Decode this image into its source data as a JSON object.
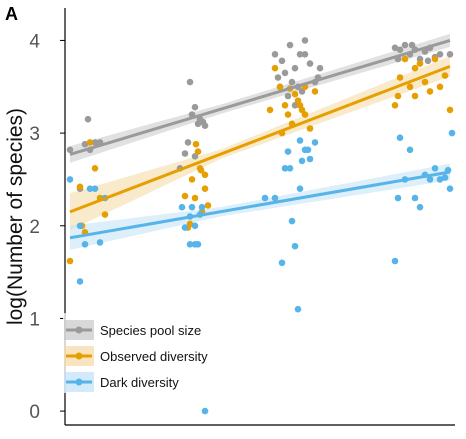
{
  "panel_label": "A",
  "chart_data": {
    "type": "scatter",
    "title": "",
    "xlabel": "",
    "ylabel": "log(Number of species)",
    "ylim": [
      -0.15,
      4.35
    ],
    "xlim": [
      -0.45,
      3.45
    ],
    "yticks": [
      "0",
      "1",
      "2",
      "3",
      "4"
    ],
    "grid": false,
    "legend_position": "bottom-left",
    "series": [
      {
        "name": "Species pool size",
        "color": "#9a9a9a",
        "band_color": "#c8c8c8",
        "fit": {
          "x": [
            -0.4,
            3.4
          ],
          "y": [
            2.77,
            4.0
          ],
          "ci_halfwidth": [
            0.09,
            0.07
          ]
        },
        "points": [
          [
            -0.4,
            2.82
          ],
          [
            -0.3,
            2.4
          ],
          [
            -0.25,
            2.88
          ],
          [
            -0.22,
            3.15
          ],
          [
            -0.15,
            2.9
          ],
          [
            -0.1,
            2.9
          ],
          [
            -0.2,
            2.82
          ],
          [
            0.8,
            3.55
          ],
          [
            0.85,
            3.28
          ],
          [
            0.9,
            3.15
          ],
          [
            0.93,
            3.12
          ],
          [
            0.95,
            3.08
          ],
          [
            0.82,
            3.2
          ],
          [
            0.88,
            3.1
          ],
          [
            0.78,
            2.9
          ],
          [
            0.85,
            2.75
          ],
          [
            0.7,
            2.62
          ],
          [
            0.75,
            2.78
          ],
          [
            1.65,
            3.85
          ],
          [
            1.72,
            3.78
          ],
          [
            1.8,
            3.95
          ],
          [
            1.85,
            3.7
          ],
          [
            1.9,
            3.85
          ],
          [
            1.95,
            4.0
          ],
          [
            2.0,
            3.75
          ],
          [
            2.05,
            3.55
          ],
          [
            1.75,
            3.65
          ],
          [
            1.68,
            3.6
          ],
          [
            1.82,
            3.55
          ],
          [
            1.88,
            3.5
          ],
          [
            1.92,
            3.45
          ],
          [
            1.78,
            3.4
          ],
          [
            1.85,
            3.3
          ],
          [
            1.7,
            3.5
          ],
          [
            2.08,
            3.6
          ],
          [
            2.1,
            3.7
          ],
          [
            1.95,
            3.85
          ],
          [
            2.85,
            3.92
          ],
          [
            2.9,
            3.9
          ],
          [
            2.95,
            3.95
          ],
          [
            3.0,
            3.85
          ],
          [
            3.05,
            3.9
          ],
          [
            3.1,
            3.8
          ],
          [
            3.15,
            3.88
          ],
          [
            3.2,
            3.92
          ],
          [
            3.25,
            3.82
          ],
          [
            3.3,
            3.85
          ],
          [
            3.4,
            3.85
          ],
          [
            2.88,
            3.8
          ],
          [
            3.02,
            3.95
          ],
          [
            3.18,
            3.78
          ]
        ]
      },
      {
        "name": "Observed diversity",
        "color": "#e69f00",
        "band_color": "#f5d9a3",
        "fit": {
          "x": [
            -0.4,
            3.4
          ],
          "y": [
            2.15,
            3.72
          ],
          "ci_halfwidth": [
            0.2,
            0.11
          ]
        },
        "points": [
          [
            -0.4,
            1.62
          ],
          [
            -0.3,
            2.42
          ],
          [
            -0.28,
            2.0
          ],
          [
            -0.25,
            1.93
          ],
          [
            -0.2,
            2.9
          ],
          [
            -0.1,
            2.3
          ],
          [
            -0.05,
            2.12
          ],
          [
            -0.15,
            2.62
          ],
          [
            0.75,
            2.32
          ],
          [
            0.78,
            1.98
          ],
          [
            0.8,
            2.02
          ],
          [
            0.82,
            2.5
          ],
          [
            0.85,
            2.3
          ],
          [
            0.88,
            2.8
          ],
          [
            0.9,
            2.62
          ],
          [
            0.92,
            2.15
          ],
          [
            0.95,
            2.4
          ],
          [
            0.98,
            2.22
          ],
          [
            0.86,
            2.88
          ],
          [
            0.91,
            2.6
          ],
          [
            0.95,
            2.55
          ],
          [
            1.6,
            3.25
          ],
          [
            1.65,
            3.7
          ],
          [
            1.7,
            3.5
          ],
          [
            1.75,
            3.3
          ],
          [
            1.78,
            3.2
          ],
          [
            1.8,
            3.48
          ],
          [
            1.85,
            3.42
          ],
          [
            1.88,
            3.35
          ],
          [
            1.9,
            3.3
          ],
          [
            1.92,
            3.25
          ],
          [
            1.95,
            3.5
          ],
          [
            2.0,
            3.05
          ],
          [
            2.05,
            3.45
          ],
          [
            1.95,
            3.2
          ],
          [
            1.72,
            3.0
          ],
          [
            1.82,
            3.1
          ],
          [
            2.85,
            3.3
          ],
          [
            2.88,
            3.4
          ],
          [
            2.9,
            3.6
          ],
          [
            2.95,
            3.8
          ],
          [
            3.0,
            3.5
          ],
          [
            3.05,
            3.7
          ],
          [
            3.1,
            3.75
          ],
          [
            3.15,
            3.55
          ],
          [
            3.2,
            3.45
          ],
          [
            3.25,
            3.8
          ],
          [
            3.3,
            3.5
          ],
          [
            3.35,
            3.62
          ],
          [
            3.4,
            3.25
          ],
          [
            3.05,
            3.4
          ]
        ]
      },
      {
        "name": "Dark diversity",
        "color": "#56b4e9",
        "band_color": "#bfe1f6",
        "fit": {
          "x": [
            -0.4,
            3.4
          ],
          "y": [
            1.87,
            2.58
          ],
          "ci_halfwidth": [
            0.13,
            0.09
          ]
        },
        "points": [
          [
            -0.4,
            2.5
          ],
          [
            -0.3,
            1.4
          ],
          [
            -0.25,
            1.8
          ],
          [
            -0.2,
            2.4
          ],
          [
            -0.15,
            2.4
          ],
          [
            -0.1,
            1.82
          ],
          [
            -0.05,
            2.3
          ],
          [
            -0.3,
            2.0
          ],
          [
            0.72,
            2.2
          ],
          [
            0.75,
            1.98
          ],
          [
            0.8,
            1.8
          ],
          [
            0.82,
            2.2
          ],
          [
            0.85,
            2.0
          ],
          [
            0.88,
            1.8
          ],
          [
            0.9,
            2.12
          ],
          [
            0.92,
            2.2
          ],
          [
            0.95,
            0.0
          ],
          [
            0.85,
            1.8
          ],
          [
            0.8,
            2.1
          ],
          [
            1.55,
            2.3
          ],
          [
            1.65,
            2.3
          ],
          [
            1.72,
            1.6
          ],
          [
            1.75,
            2.62
          ],
          [
            1.78,
            2.8
          ],
          [
            1.8,
            2.62
          ],
          [
            1.82,
            2.05
          ],
          [
            1.85,
            1.78
          ],
          [
            1.88,
            1.1
          ],
          [
            1.9,
            2.92
          ],
          [
            1.92,
            2.7
          ],
          [
            1.95,
            2.82
          ],
          [
            1.98,
            2.82
          ],
          [
            2.0,
            2.72
          ],
          [
            2.05,
            2.9
          ],
          [
            1.9,
            2.4
          ],
          [
            2.85,
            1.62
          ],
          [
            2.88,
            2.3
          ],
          [
            2.9,
            2.95
          ],
          [
            2.95,
            2.5
          ],
          [
            3.0,
            2.82
          ],
          [
            3.05,
            2.3
          ],
          [
            3.1,
            2.2
          ],
          [
            3.15,
            2.55
          ],
          [
            3.2,
            2.5
          ],
          [
            3.25,
            2.62
          ],
          [
            3.3,
            2.5
          ],
          [
            3.35,
            2.52
          ],
          [
            3.4,
            2.4
          ],
          [
            3.42,
            3.0
          ],
          [
            3.38,
            2.6
          ]
        ]
      }
    ]
  }
}
